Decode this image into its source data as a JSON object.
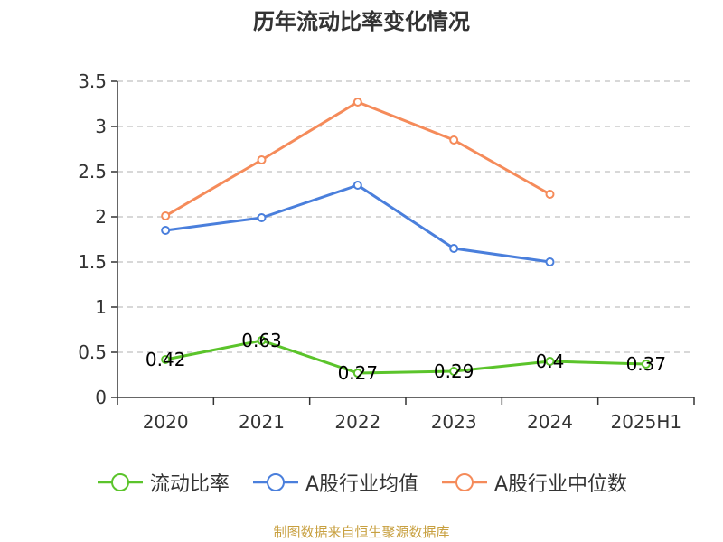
{
  "chart_data": {
    "type": "line",
    "title": "历年流动比率变化情况",
    "categories": [
      "2020",
      "2021",
      "2022",
      "2023",
      "2024",
      "2025H1"
    ],
    "ylim": [
      0,
      3.5
    ],
    "yticks": [
      {
        "value": 0,
        "label": "0"
      },
      {
        "value": 0.5,
        "label": "0.5"
      },
      {
        "value": 1,
        "label": "1"
      },
      {
        "value": 1.5,
        "label": "1.5"
      },
      {
        "value": 2,
        "label": "2"
      },
      {
        "value": 2.5,
        "label": "2.5"
      },
      {
        "value": 3,
        "label": "3"
      },
      {
        "value": 3.5,
        "label": "3.5"
      }
    ],
    "grid": true,
    "legend_position": "bottom",
    "series": [
      {
        "name": "流动比率",
        "color": "#5bc42b",
        "values": [
          0.42,
          0.63,
          0.27,
          0.29,
          0.4,
          0.37
        ],
        "labels": [
          "0.42",
          "0.63",
          "0.27",
          "0.29",
          "0.4",
          "0.37"
        ]
      },
      {
        "name": "A股行业均值",
        "color": "#4a7fdc",
        "values": [
          1.85,
          1.99,
          2.35,
          1.65,
          1.5,
          null
        ]
      },
      {
        "name": "A股行业中位数",
        "color": "#f58b5a",
        "values": [
          2.01,
          2.63,
          3.27,
          2.85,
          2.25,
          null
        ]
      }
    ]
  },
  "source": "制图数据来自恒生聚源数据库"
}
